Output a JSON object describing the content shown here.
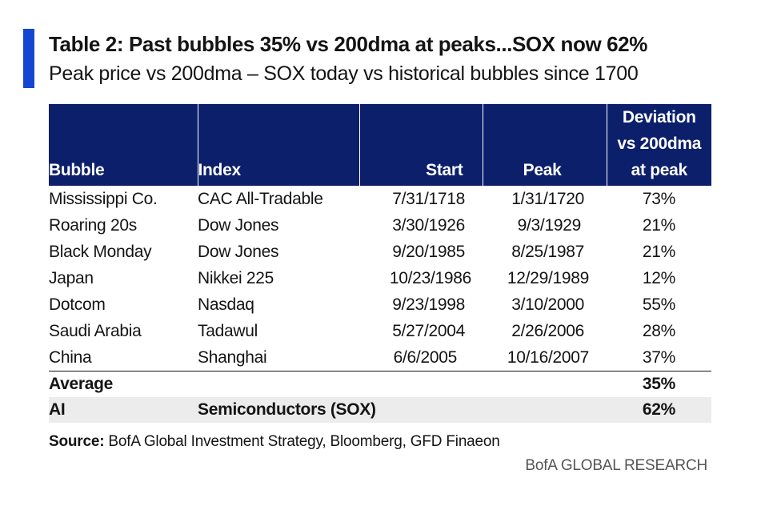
{
  "header": {
    "title": "Table 2: Past bubbles 35% vs 200dma at peaks...SOX now 62%",
    "subtitle": "Peak price vs 200dma – SOX today vs historical bubbles since 1700",
    "accent_color": "#1446d2"
  },
  "table": {
    "header_bg": "#0b1f6b",
    "columns": {
      "bubble": "Bubble",
      "index": "Index",
      "start": "Start",
      "peak": "Peak",
      "deviation_line1": "Deviation",
      "deviation_line2": "vs 200dma",
      "deviation_line3": "at peak"
    },
    "rows": [
      {
        "bubble": "Mississippi Co.",
        "index": "CAC All-Tradable",
        "start": "7/31/1718",
        "peak": "1/31/1720",
        "deviation": "73%"
      },
      {
        "bubble": "Roaring 20s",
        "index": "Dow Jones",
        "start": "3/30/1926",
        "peak": "9/3/1929",
        "deviation": "21%"
      },
      {
        "bubble": "Black Monday",
        "index": "Dow Jones",
        "start": "9/20/1985",
        "peak": "8/25/1987",
        "deviation": "21%"
      },
      {
        "bubble": "Japan",
        "index": "Nikkei 225",
        "start": "10/23/1986",
        "peak": "12/29/1989",
        "deviation": "12%"
      },
      {
        "bubble": "Dotcom",
        "index": "Nasdaq",
        "start": "9/23/1998",
        "peak": "3/10/2000",
        "deviation": "55%"
      },
      {
        "bubble": "Saudi Arabia",
        "index": "Tadawul",
        "start": "5/27/2004",
        "peak": "2/26/2006",
        "deviation": "28%"
      },
      {
        "bubble": "China",
        "index": "Shanghai",
        "start": "6/6/2005",
        "peak": "10/16/2007",
        "deviation": "37%"
      }
    ],
    "average": {
      "label": "Average",
      "deviation": "35%"
    },
    "ai": {
      "label": "AI",
      "index": "Semiconductors (SOX)",
      "deviation": "62%"
    }
  },
  "footer": {
    "source_label": "Source:",
    "source_text": " BofA Global Investment Strategy, Bloomberg, GFD Finaeon",
    "brand": "BofA GLOBAL RESEARCH"
  }
}
